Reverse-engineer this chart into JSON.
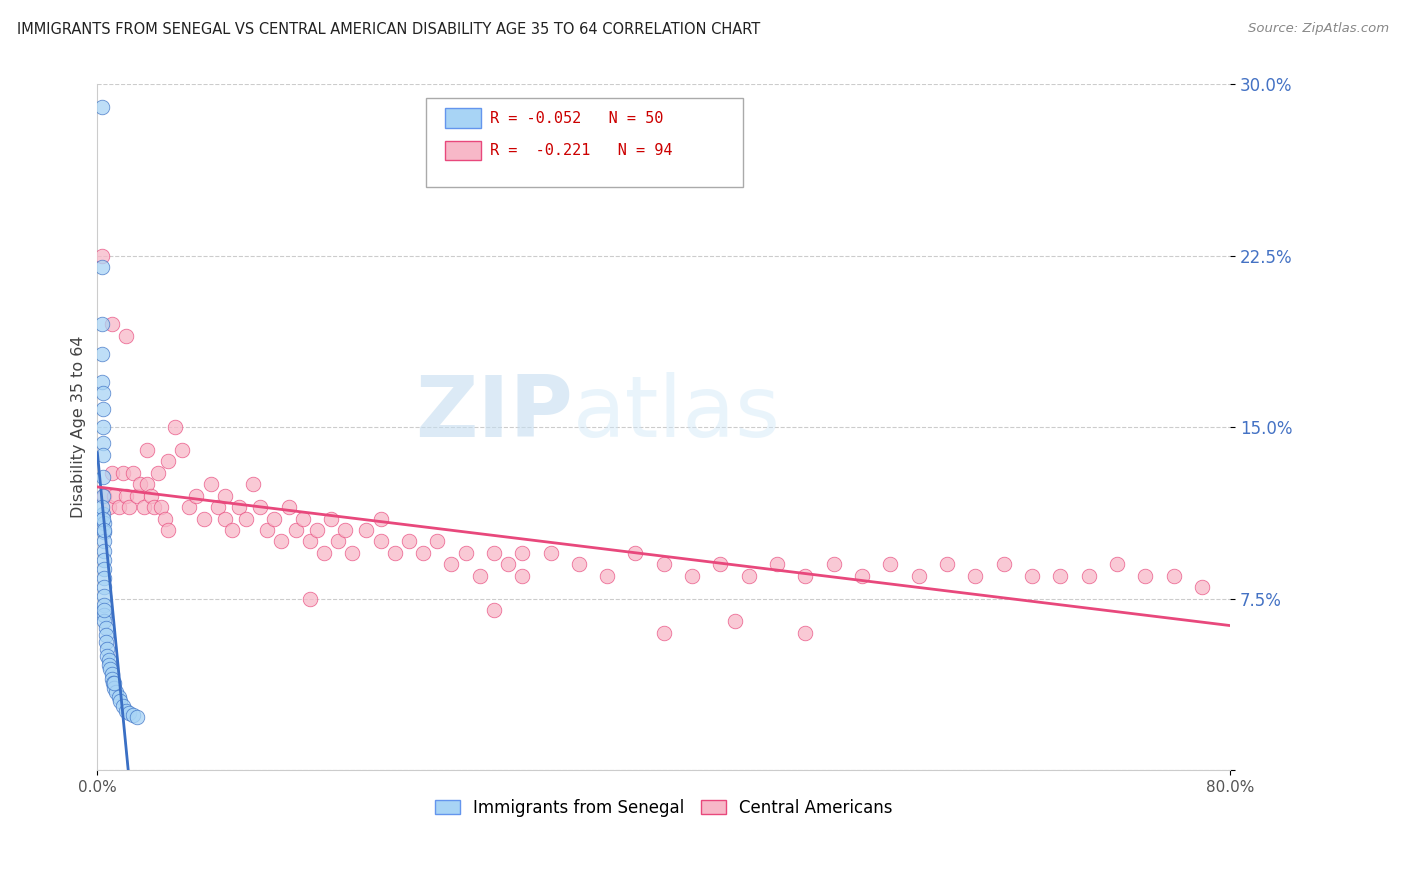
{
  "title": "IMMIGRANTS FROM SENEGAL VS CENTRAL AMERICAN DISABILITY AGE 35 TO 64 CORRELATION CHART",
  "source": "Source: ZipAtlas.com",
  "ylabel": "Disability Age 35 to 64",
  "r_senegal": -0.052,
  "n_senegal": 50,
  "r_central": -0.221,
  "n_central": 94,
  "color_senegal": "#a8d4f5",
  "color_central": "#f7b8c8",
  "line_color_senegal": "#3a6fc4",
  "line_color_central": "#e8487c",
  "xlim": [
    0.0,
    0.8
  ],
  "ylim": [
    0.0,
    0.3
  ],
  "yticks": [
    0.0,
    0.075,
    0.15,
    0.225,
    0.3
  ],
  "ytick_labels": [
    "",
    "7.5%",
    "15.0%",
    "22.5%",
    "30.0%"
  ],
  "xtick_labels": [
    "0.0%",
    "",
    "",
    "",
    "",
    "",
    "",
    "",
    "80.0%"
  ],
  "watermark_zip": "ZIP",
  "watermark_atlas": "atlas",
  "legend_r1": "R = -0.052",
  "legend_n1": "N = 50",
  "legend_r2": "R =  -0.221",
  "legend_n2": "N = 94",
  "senegal_x": [
    0.003,
    0.003,
    0.003,
    0.003,
    0.003,
    0.004,
    0.004,
    0.004,
    0.004,
    0.004,
    0.004,
    0.004,
    0.004,
    0.005,
    0.005,
    0.005,
    0.005,
    0.005,
    0.005,
    0.005,
    0.005,
    0.005,
    0.005,
    0.005,
    0.005,
    0.006,
    0.006,
    0.006,
    0.007,
    0.007,
    0.008,
    0.008,
    0.009,
    0.01,
    0.01,
    0.011,
    0.012,
    0.013,
    0.015,
    0.016,
    0.018,
    0.02,
    0.022,
    0.025,
    0.028,
    0.003,
    0.004,
    0.005,
    0.005,
    0.012
  ],
  "senegal_y": [
    0.29,
    0.22,
    0.195,
    0.182,
    0.17,
    0.165,
    0.158,
    0.15,
    0.143,
    0.138,
    0.128,
    0.12,
    0.112,
    0.108,
    0.104,
    0.1,
    0.096,
    0.092,
    0.088,
    0.084,
    0.08,
    0.076,
    0.072,
    0.068,
    0.065,
    0.062,
    0.059,
    0.056,
    0.053,
    0.05,
    0.048,
    0.046,
    0.044,
    0.042,
    0.04,
    0.038,
    0.036,
    0.034,
    0.032,
    0.03,
    0.028,
    0.026,
    0.025,
    0.024,
    0.023,
    0.115,
    0.11,
    0.105,
    0.07,
    0.038
  ],
  "central_x": [
    0.003,
    0.005,
    0.008,
    0.01,
    0.012,
    0.015,
    0.018,
    0.02,
    0.022,
    0.025,
    0.028,
    0.03,
    0.033,
    0.035,
    0.038,
    0.04,
    0.043,
    0.045,
    0.048,
    0.05,
    0.055,
    0.06,
    0.065,
    0.07,
    0.075,
    0.08,
    0.085,
    0.09,
    0.095,
    0.1,
    0.105,
    0.11,
    0.115,
    0.12,
    0.125,
    0.13,
    0.135,
    0.14,
    0.145,
    0.15,
    0.155,
    0.16,
    0.165,
    0.17,
    0.175,
    0.18,
    0.19,
    0.2,
    0.21,
    0.22,
    0.23,
    0.24,
    0.25,
    0.26,
    0.27,
    0.28,
    0.29,
    0.3,
    0.32,
    0.34,
    0.36,
    0.38,
    0.4,
    0.42,
    0.44,
    0.46,
    0.48,
    0.5,
    0.52,
    0.54,
    0.56,
    0.58,
    0.6,
    0.62,
    0.64,
    0.66,
    0.68,
    0.7,
    0.72,
    0.74,
    0.76,
    0.78,
    0.01,
    0.02,
    0.035,
    0.05,
    0.09,
    0.15,
    0.2,
    0.3,
    0.4,
    0.5,
    0.28,
    0.45
  ],
  "central_y": [
    0.225,
    0.12,
    0.115,
    0.13,
    0.12,
    0.115,
    0.13,
    0.12,
    0.115,
    0.13,
    0.12,
    0.125,
    0.115,
    0.125,
    0.12,
    0.115,
    0.13,
    0.115,
    0.11,
    0.105,
    0.15,
    0.14,
    0.115,
    0.12,
    0.11,
    0.125,
    0.115,
    0.11,
    0.105,
    0.115,
    0.11,
    0.125,
    0.115,
    0.105,
    0.11,
    0.1,
    0.115,
    0.105,
    0.11,
    0.1,
    0.105,
    0.095,
    0.11,
    0.1,
    0.105,
    0.095,
    0.105,
    0.1,
    0.095,
    0.1,
    0.095,
    0.1,
    0.09,
    0.095,
    0.085,
    0.095,
    0.09,
    0.085,
    0.095,
    0.09,
    0.085,
    0.095,
    0.09,
    0.085,
    0.09,
    0.085,
    0.09,
    0.085,
    0.09,
    0.085,
    0.09,
    0.085,
    0.09,
    0.085,
    0.09,
    0.085,
    0.085,
    0.085,
    0.09,
    0.085,
    0.085,
    0.08,
    0.195,
    0.19,
    0.14,
    0.135,
    0.12,
    0.075,
    0.11,
    0.095,
    0.06,
    0.06,
    0.07,
    0.065
  ]
}
